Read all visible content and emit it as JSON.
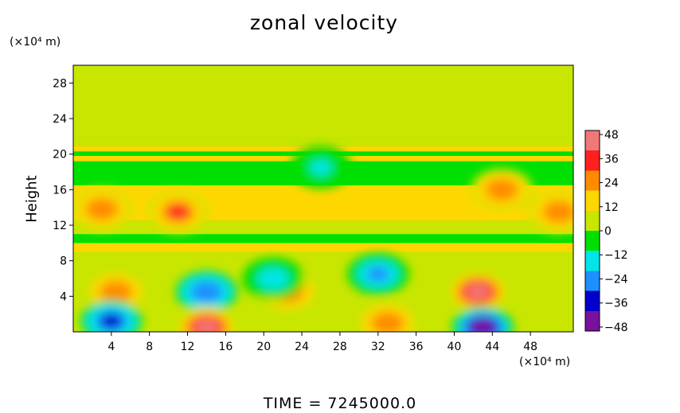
{
  "chart_data": {
    "type": "heatmap",
    "title": "zonal velocity",
    "footer": "TIME = 7245000.0",
    "xlabel": "",
    "ylabel": "Height",
    "x_unit": "(×10⁴ m)",
    "y_unit": "(×10⁴ m)",
    "xlim": [
      0,
      52.5
    ],
    "ylim": [
      0,
      30
    ],
    "x_ticks": [
      4,
      8,
      12,
      16,
      20,
      24,
      28,
      32,
      36,
      40,
      44,
      48
    ],
    "y_ticks": [
      4,
      8,
      12,
      16,
      20,
      24,
      28
    ],
    "colorbar": {
      "range": [
        -50,
        50
      ],
      "ticks": [
        48,
        36,
        24,
        12,
        0,
        -12,
        -24,
        -36,
        -48
      ],
      "colors": [
        "#7a10a0",
        "#0000cc",
        "#1e90ff",
        "#00e5e5",
        "#00e000",
        "#c8e600",
        "#ffd700",
        "#ff8c00",
        "#ff2020",
        "#f07878"
      ]
    },
    "features": [
      {
        "x": 4.5,
        "y": 4.5,
        "value": 28
      },
      {
        "x": 4,
        "y": 1.2,
        "value": -32
      },
      {
        "x": 14,
        "y": 4.5,
        "value": -28
      },
      {
        "x": 14,
        "y": 0.5,
        "value": 46
      },
      {
        "x": 22.5,
        "y": 4.6,
        "value": 32
      },
      {
        "x": 21,
        "y": 6,
        "value": -14
      },
      {
        "x": 32,
        "y": 6.5,
        "value": -24
      },
      {
        "x": 33,
        "y": 1,
        "value": 28
      },
      {
        "x": 42.5,
        "y": 4.5,
        "value": 40
      },
      {
        "x": 43,
        "y": 0.5,
        "value": -46
      },
      {
        "x": 3,
        "y": 13.8,
        "value": 26
      },
      {
        "x": 11,
        "y": 13.5,
        "value": 30
      },
      {
        "x": 45,
        "y": 16,
        "value": 28
      },
      {
        "x": 51,
        "y": 13.5,
        "value": 28
      },
      {
        "x": 26,
        "y": 18.5,
        "value": -12
      }
    ]
  }
}
